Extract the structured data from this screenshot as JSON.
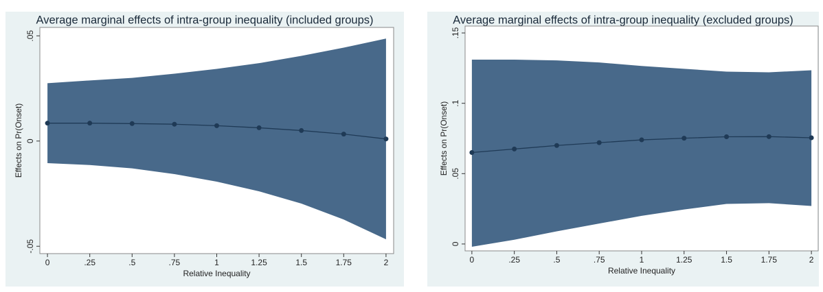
{
  "chart_data": [
    {
      "type": "line",
      "title": "Average marginal effects of intra-group inequality (included groups)",
      "x_label": "Relative Inequality",
      "y_label": "Effects on Pr(Onset)",
      "x": [
        0,
        0.25,
        0.5,
        0.75,
        1,
        1.25,
        1.5,
        1.75,
        2
      ],
      "series": [
        {
          "color": "#1f3a56",
          "band_color": "#48698a",
          "values": [
            0.0085,
            0.0085,
            0.0083,
            0.008,
            0.0073,
            0.0063,
            0.005,
            0.0033,
            0.001
          ],
          "ci_upper": [
            0.0275,
            0.0288,
            0.03,
            0.032,
            0.0343,
            0.037,
            0.0405,
            0.0444,
            0.0487
          ],
          "ci_lower": [
            -0.0105,
            -0.0114,
            -0.013,
            -0.0157,
            -0.0193,
            -0.0239,
            -0.0297,
            -0.0373,
            -0.0467
          ]
        }
      ],
      "xlim": [
        -0.045,
        2.045
      ],
      "ylim": [
        -0.0535,
        0.054
      ],
      "xticks": [
        0,
        {
          "value": 0.25,
          "label": ".25"
        },
        {
          "value": 0.5,
          "label": ".5"
        },
        {
          "value": 0.75,
          "label": ".75"
        },
        1,
        1.25,
        1.5,
        1.75,
        2
      ],
      "yticks": [
        {
          "value": -0.05,
          "label": "-.05"
        },
        0,
        {
          "value": 0.05,
          "label": ".05"
        }
      ]
    },
    {
      "type": "line",
      "title": "Average marginal effects of intra-group inequality (excluded groups)",
      "x_label": "Relative Inequality",
      "y_label": "Effects on Pr(Onset)",
      "x": [
        0,
        0.25,
        0.5,
        0.75,
        1,
        1.25,
        1.5,
        1.75,
        2
      ],
      "series": [
        {
          "color": "#1f3a56",
          "band_color": "#48698a",
          "values": [
            0.065,
            0.0675,
            0.07,
            0.072,
            0.074,
            0.0752,
            0.0762,
            0.0763,
            0.0755
          ],
          "ci_upper": [
            0.131,
            0.131,
            0.1305,
            0.129,
            0.1265,
            0.1245,
            0.1225,
            0.122,
            0.1235
          ],
          "ci_lower": [
            -0.002,
            0.003,
            0.009,
            0.0145,
            0.02,
            0.0245,
            0.0285,
            0.029,
            0.027
          ]
        }
      ],
      "xlim": [
        -0.04,
        2.04
      ],
      "ylim": [
        -0.0049,
        0.1549
      ],
      "xticks": [
        0,
        {
          "value": 0.25,
          "label": ".25"
        },
        {
          "value": 0.5,
          "label": ".5"
        },
        {
          "value": 0.75,
          "label": ".75"
        },
        1,
        1.25,
        1.5,
        1.75,
        2
      ],
      "yticks": [
        0,
        {
          "value": 0.05,
          "label": ".05"
        },
        {
          "value": 0.1,
          "label": ".1"
        },
        {
          "value": 0.15,
          "label": ".15"
        }
      ]
    }
  ]
}
